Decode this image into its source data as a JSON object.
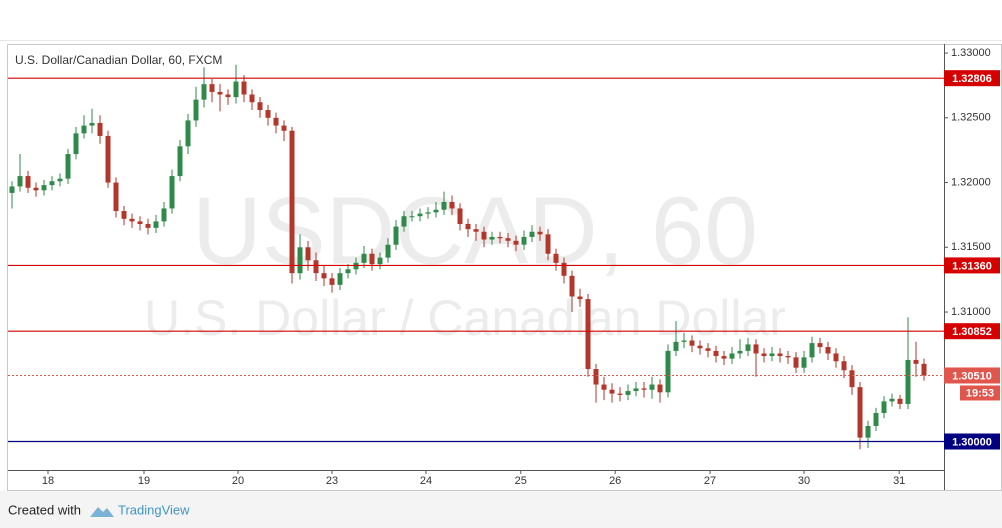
{
  "chart_data": {
    "type": "candlestick",
    "title": "U.S. Dollar/Canadian Dollar, 60, FXCM",
    "watermark": {
      "symbol": "USDCAD, 60",
      "description": "U.S. Dollar / Canadian Dollar"
    },
    "up_color": "#2f8a4a",
    "down_color": "#b3362b",
    "candles": [
      [
        1.3192,
        1.3201,
        1.318,
        1.3197
      ],
      [
        1.3197,
        1.3222,
        1.3193,
        1.3205
      ],
      [
        1.3205,
        1.3209,
        1.3192,
        1.3196
      ],
      [
        1.3196,
        1.32,
        1.3189,
        1.3194
      ],
      [
        1.3194,
        1.3202,
        1.319,
        1.3198
      ],
      [
        1.3198,
        1.3205,
        1.3194,
        1.3201
      ],
      [
        1.3201,
        1.3207,
        1.3197,
        1.3203
      ],
      [
        1.3203,
        1.3226,
        1.3199,
        1.3222
      ],
      [
        1.3222,
        1.3243,
        1.3218,
        1.3238
      ],
      [
        1.3238,
        1.3252,
        1.3234,
        1.3244
      ],
      [
        1.3244,
        1.3257,
        1.3238,
        1.3246
      ],
      [
        1.3246,
        1.3252,
        1.323,
        1.3236
      ],
      [
        1.3236,
        1.324,
        1.3196,
        1.32
      ],
      [
        1.32,
        1.3204,
        1.3173,
        1.3178
      ],
      [
        1.3178,
        1.3182,
        1.3167,
        1.3172
      ],
      [
        1.3172,
        1.3176,
        1.3165,
        1.317
      ],
      [
        1.317,
        1.3174,
        1.3163,
        1.3168
      ],
      [
        1.3168,
        1.3172,
        1.316,
        1.3165
      ],
      [
        1.3165,
        1.3175,
        1.3161,
        1.317
      ],
      [
        1.317,
        1.3185,
        1.3166,
        1.318
      ],
      [
        1.318,
        1.321,
        1.3176,
        1.3205
      ],
      [
        1.3205,
        1.3233,
        1.3201,
        1.3228
      ],
      [
        1.3228,
        1.3253,
        1.3222,
        1.3248
      ],
      [
        1.3248,
        1.3274,
        1.3243,
        1.3264
      ],
      [
        1.3264,
        1.3289,
        1.3258,
        1.3276
      ],
      [
        1.3276,
        1.328,
        1.3262,
        1.327
      ],
      [
        1.327,
        1.3276,
        1.3255,
        1.3268
      ],
      [
        1.3268,
        1.3272,
        1.326,
        1.3266
      ],
      [
        1.3266,
        1.3291,
        1.3261,
        1.3278
      ],
      [
        1.3278,
        1.3283,
        1.3262,
        1.3268
      ],
      [
        1.3268,
        1.3272,
        1.3256,
        1.3262
      ],
      [
        1.3262,
        1.3266,
        1.325,
        1.3256
      ],
      [
        1.3256,
        1.326,
        1.3244,
        1.325
      ],
      [
        1.325,
        1.3254,
        1.3238,
        1.3244
      ],
      [
        1.3244,
        1.3248,
        1.3232,
        1.324
      ],
      [
        1.324,
        1.3243,
        1.3122,
        1.313
      ],
      [
        1.313,
        1.316,
        1.3125,
        1.315
      ],
      [
        1.315,
        1.3155,
        1.3132,
        1.314
      ],
      [
        1.314,
        1.3146,
        1.3124,
        1.313
      ],
      [
        1.313,
        1.3136,
        1.312,
        1.3126
      ],
      [
        1.3126,
        1.313,
        1.3115,
        1.3121
      ],
      [
        1.3121,
        1.3134,
        1.3117,
        1.313
      ],
      [
        1.313,
        1.3137,
        1.3126,
        1.3133
      ],
      [
        1.3133,
        1.3142,
        1.3129,
        1.3138
      ],
      [
        1.3138,
        1.3151,
        1.3134,
        1.3145
      ],
      [
        1.3145,
        1.3149,
        1.3132,
        1.3137
      ],
      [
        1.3137,
        1.3146,
        1.3133,
        1.3142
      ],
      [
        1.3142,
        1.3157,
        1.3138,
        1.3152
      ],
      [
        1.3152,
        1.3171,
        1.3148,
        1.3166
      ],
      [
        1.3166,
        1.3178,
        1.3162,
        1.3174
      ],
      [
        1.3174,
        1.3178,
        1.317,
        1.3174
      ],
      [
        1.3174,
        1.318,
        1.317,
        1.3176
      ],
      [
        1.3176,
        1.3181,
        1.3172,
        1.3177
      ],
      [
        1.3177,
        1.3185,
        1.3173,
        1.3179
      ],
      [
        1.3179,
        1.3193,
        1.3175,
        1.3185
      ],
      [
        1.3185,
        1.319,
        1.3175,
        1.318
      ],
      [
        1.318,
        1.3184,
        1.3163,
        1.3168
      ],
      [
        1.3168,
        1.3172,
        1.3158,
        1.3164
      ],
      [
        1.3164,
        1.3168,
        1.3155,
        1.3162
      ],
      [
        1.3162,
        1.3166,
        1.315,
        1.3156
      ],
      [
        1.3156,
        1.3162,
        1.3152,
        1.3158
      ],
      [
        1.3158,
        1.3162,
        1.3153,
        1.3157
      ],
      [
        1.3157,
        1.3161,
        1.315,
        1.3155
      ],
      [
        1.3155,
        1.3159,
        1.3147,
        1.3152
      ],
      [
        1.3152,
        1.3163,
        1.3148,
        1.3158
      ],
      [
        1.3158,
        1.3167,
        1.3154,
        1.3162
      ],
      [
        1.3162,
        1.3166,
        1.3155,
        1.316
      ],
      [
        1.316,
        1.3164,
        1.314,
        1.3145
      ],
      [
        1.3145,
        1.3149,
        1.3132,
        1.3138
      ],
      [
        1.3138,
        1.3142,
        1.3122,
        1.3128
      ],
      [
        1.3128,
        1.3132,
        1.31,
        1.3112
      ],
      [
        1.3112,
        1.3118,
        1.3104,
        1.311
      ],
      [
        1.311,
        1.3114,
        1.305,
        1.3056
      ],
      [
        1.3056,
        1.306,
        1.303,
        1.3044
      ],
      [
        1.3044,
        1.305,
        1.3032,
        1.304
      ],
      [
        1.304,
        1.3045,
        1.303,
        1.3037
      ],
      [
        1.3037,
        1.3042,
        1.3031,
        1.3036
      ],
      [
        1.3036,
        1.3044,
        1.3032,
        1.3039
      ],
      [
        1.3039,
        1.3046,
        1.3035,
        1.3041
      ],
      [
        1.3041,
        1.3046,
        1.3034,
        1.304
      ],
      [
        1.304,
        1.305,
        1.3033,
        1.3044
      ],
      [
        1.3044,
        1.3048,
        1.303,
        1.3038
      ],
      [
        1.3038,
        1.3075,
        1.3034,
        1.307
      ],
      [
        1.307,
        1.3093,
        1.3066,
        1.3077
      ],
      [
        1.3077,
        1.3084,
        1.3072,
        1.3078
      ],
      [
        1.3078,
        1.3082,
        1.3069,
        1.3074
      ],
      [
        1.3074,
        1.3078,
        1.3067,
        1.3072
      ],
      [
        1.3072,
        1.3076,
        1.3065,
        1.307
      ],
      [
        1.307,
        1.3074,
        1.3061,
        1.3066
      ],
      [
        1.3066,
        1.307,
        1.3059,
        1.3064
      ],
      [
        1.3064,
        1.3073,
        1.306,
        1.3068
      ],
      [
        1.3068,
        1.3079,
        1.3064,
        1.307
      ],
      [
        1.307,
        1.308,
        1.3066,
        1.3075
      ],
      [
        1.3075,
        1.3079,
        1.305,
        1.3068
      ],
      [
        1.3068,
        1.3072,
        1.3061,
        1.3066
      ],
      [
        1.3066,
        1.3073,
        1.3062,
        1.3068
      ],
      [
        1.3068,
        1.3072,
        1.3061,
        1.3066
      ],
      [
        1.3066,
        1.307,
        1.306,
        1.3065
      ],
      [
        1.3065,
        1.3069,
        1.3053,
        1.3057
      ],
      [
        1.3057,
        1.307,
        1.3053,
        1.3065
      ],
      [
        1.3065,
        1.3081,
        1.3061,
        1.3076
      ],
      [
        1.3076,
        1.308,
        1.3068,
        1.3073
      ],
      [
        1.3073,
        1.3077,
        1.3063,
        1.3068
      ],
      [
        1.3068,
        1.3072,
        1.3057,
        1.3062
      ],
      [
        1.3062,
        1.3066,
        1.3049,
        1.3055
      ],
      [
        1.3055,
        1.3059,
        1.3036,
        1.3042
      ],
      [
        1.3042,
        1.3046,
        1.2994,
        1.3003
      ],
      [
        1.3003,
        1.3016,
        1.2995,
        1.3012
      ],
      [
        1.3012,
        1.3026,
        1.3008,
        1.3022
      ],
      [
        1.3022,
        1.3035,
        1.3018,
        1.3031
      ],
      [
        1.3031,
        1.3037,
        1.3027,
        1.3033
      ],
      [
        1.3033,
        1.3036,
        1.3025,
        1.3029
      ],
      [
        1.3029,
        1.3096,
        1.3025,
        1.3063
      ],
      [
        1.3063,
        1.3077,
        1.305,
        1.306
      ],
      [
        1.306,
        1.3064,
        1.3047,
        1.3051
      ]
    ],
    "xlim": [
      -0.5,
      116.5
    ],
    "xticks": [
      {
        "value": 4.5,
        "label": "18"
      },
      {
        "value": 16.5,
        "label": "19"
      },
      {
        "value": 28.25,
        "label": "20"
      },
      {
        "value": 40,
        "label": "23"
      },
      {
        "value": 51.75,
        "label": "24"
      },
      {
        "value": 63.6,
        "label": "25"
      },
      {
        "value": 75.4,
        "label": "26"
      },
      {
        "value": 87.25,
        "label": "27"
      },
      {
        "value": 99,
        "label": "30"
      },
      {
        "value": 110.9,
        "label": "31"
      }
    ],
    "ylim": [
      1.2978,
      1.3307
    ],
    "yticks": [
      {
        "value": 1.33,
        "label": "1.33000"
      },
      {
        "value": 1.325,
        "label": "1.32500"
      },
      {
        "value": 1.32,
        "label": "1.32000"
      },
      {
        "value": 1.315,
        "label": "1.31500"
      },
      {
        "value": 1.31,
        "label": "1.31000"
      }
    ],
    "levels": [
      {
        "value": 1.32806,
        "label": "1.32806",
        "color": "#d50000"
      },
      {
        "value": 1.3136,
        "label": "1.31360",
        "color": "#d50000"
      },
      {
        "value": 1.30852,
        "label": "1.30852",
        "color": "#d50000"
      },
      {
        "value": 1.3,
        "label": "1.30000",
        "color": "#000080"
      }
    ],
    "last_price": {
      "value": 1.3051,
      "label": "1.30510",
      "countdown": "19:53",
      "color": "#e0554c"
    }
  },
  "footer": {
    "created_with": "Created with",
    "brand": "TradingView"
  }
}
